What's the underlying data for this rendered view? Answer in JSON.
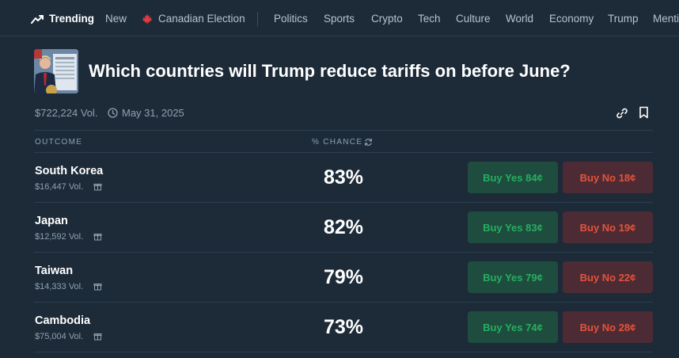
{
  "nav": {
    "trending_label": "Trending",
    "items": [
      "New",
      "Canadian Election",
      "Politics",
      "Sports",
      "Crypto",
      "Tech",
      "Culture",
      "World",
      "Economy",
      "Trump",
      "Menti"
    ]
  },
  "market": {
    "title": "Which countries will Trump reduce tariffs on before June?",
    "volume": "$722,224 Vol.",
    "end_date": "May 31, 2025"
  },
  "table": {
    "outcome_header": "OUTCOME",
    "chance_header": "% CHANCE",
    "rows": [
      {
        "name": "South Korea",
        "volume": "$16,447 Vol.",
        "chance": "83%",
        "buy_yes": "Buy Yes 84¢",
        "buy_no": "Buy No 18¢"
      },
      {
        "name": "Japan",
        "volume": "$12,592 Vol.",
        "chance": "82%",
        "buy_yes": "Buy Yes 83¢",
        "buy_no": "Buy No 19¢"
      },
      {
        "name": "Taiwan",
        "volume": "$14,333 Vol.",
        "chance": "79%",
        "buy_yes": "Buy Yes 79¢",
        "buy_no": "Buy No 22¢"
      },
      {
        "name": "Cambodia",
        "volume": "$75,004 Vol.",
        "chance": "73%",
        "buy_yes": "Buy Yes 74¢",
        "buy_no": "Buy No 28¢"
      }
    ]
  },
  "colors": {
    "background": "#1d2b39",
    "yes_text": "#27ae60",
    "no_text": "#e2533b"
  }
}
